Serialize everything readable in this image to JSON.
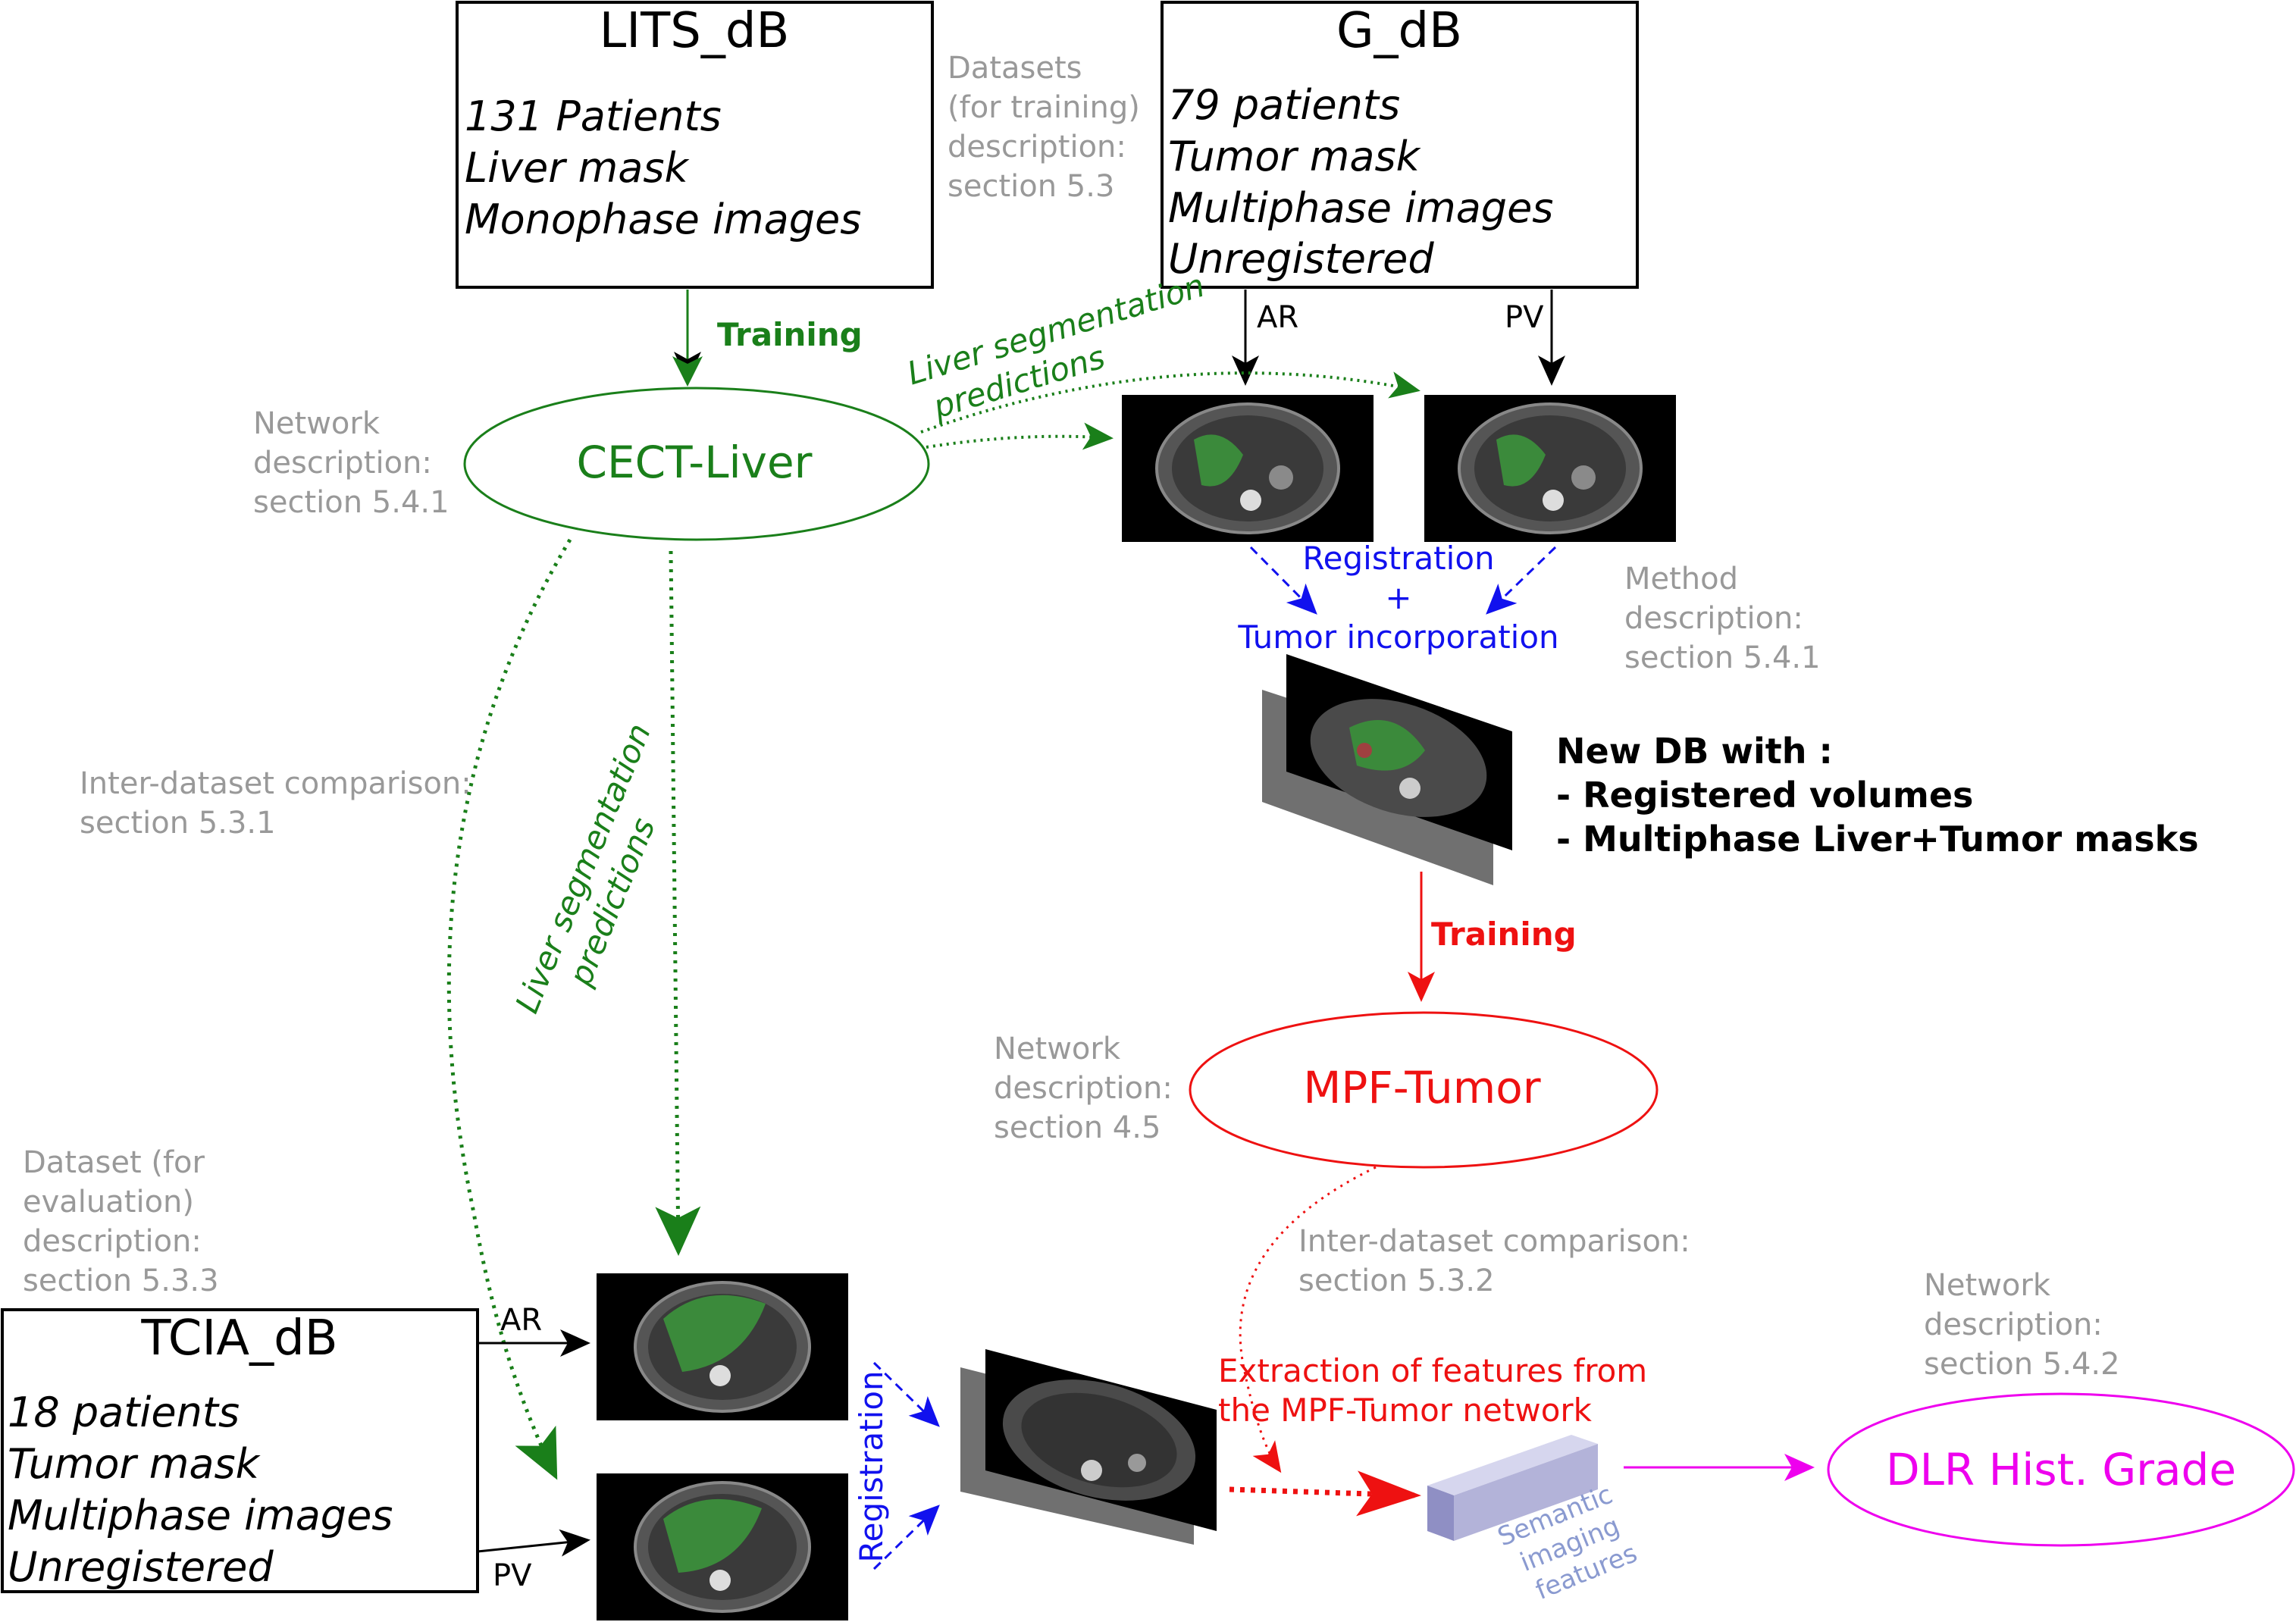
{
  "lits": {
    "title": "LITS_dB",
    "lines": [
      "131 Patients",
      "Liver mask",
      "Monophase images"
    ]
  },
  "gdb": {
    "title": "G_dB",
    "lines": [
      "79 patients",
      "Tumor mask",
      "Multiphase images",
      "Unregistered"
    ]
  },
  "tcia": {
    "title": "TCIA_dB",
    "lines": [
      "18 patients",
      "Tumor mask",
      "Multiphase images",
      "Unregistered"
    ]
  },
  "notes": {
    "datasets_training": [
      "Datasets",
      "(for training)",
      "description:",
      "section 5.3"
    ],
    "network_cect": [
      "Network",
      "description:",
      "section 5.4.1"
    ],
    "method": [
      "Method",
      "description:",
      "section 5.4.1"
    ],
    "inter_dataset_1": [
      "Inter-dataset comparison:",
      "section 5.3.1"
    ],
    "network_mpf": [
      "Network",
      "description:",
      "section 4.5"
    ],
    "dataset_eval": [
      "Dataset (for",
      "evaluation)",
      "description:",
      "section 5.3.3"
    ],
    "inter_dataset_2": [
      "Inter-dataset comparison:",
      "section 5.3.2"
    ],
    "network_dlr": [
      "Network",
      "description:",
      "section 5.4.2"
    ]
  },
  "labels": {
    "training_green": "Training",
    "training_red": "Training",
    "liver_seg_top": [
      "Liver segmentation",
      "predictions"
    ],
    "liver_seg_vertical": [
      "Liver segmentation",
      "predictions"
    ],
    "registration_block": [
      "Registration",
      "+",
      "Tumor incorporation"
    ],
    "registration_vertical": "Registration",
    "new_db": [
      "New DB with :",
      "- Registered volumes",
      "- Multiphase Liver+Tumor masks"
    ],
    "extraction": [
      "Extraction of features from",
      "the MPF-Tumor network"
    ],
    "semantic": [
      "Semantic",
      "imaging",
      "features"
    ],
    "phase_ar_g": "AR",
    "phase_pv_g": "PV",
    "phase_ar_t": "AR",
    "phase_pv_t": "PV"
  },
  "nodes": {
    "cect_liver": "CECT-Liver",
    "mpf_tumor": "MPF-Tumor",
    "dlr": "DLR Hist. Grade"
  },
  "colors": {
    "green": "#1a7f1a",
    "red": "#ee1111",
    "blue": "#1111ee",
    "magenta": "#ee00ee",
    "gray_note": "#999999",
    "liver_overlay": "#3b8a3b",
    "feature_block": "#b3b3d9"
  }
}
